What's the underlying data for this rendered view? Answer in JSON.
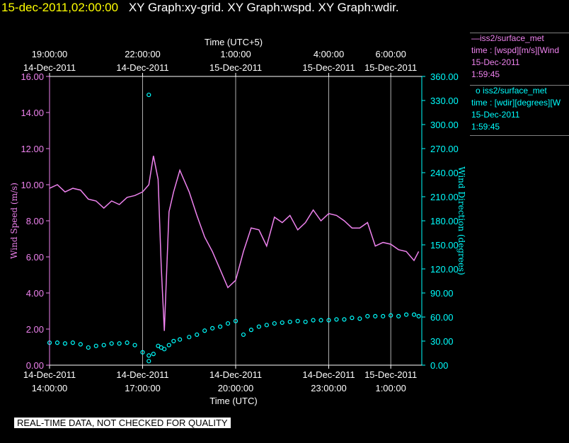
{
  "header": {
    "timestamp": "15-dec-2011,02:00:00",
    "titles": "XY Graph:xy-grid.  XY Graph:wspd.  XY Graph:wdir."
  },
  "legend": {
    "wspd": {
      "name": "iss2/surface_met",
      "line1": "time : [wspd][m/s][Wind",
      "date": "15-Dec-2011",
      "time": "1:59:45",
      "marker": "—"
    },
    "wdir": {
      "name": "iss2/surface_met",
      "line1": "time : [wdir][degrees][W",
      "date": "15-Dec-2011",
      "time": "1:59:45",
      "marker": "o"
    }
  },
  "footer_note": "REAL-TIME DATA, NOT CHECKED FOR QUALITY",
  "colors": {
    "wspd": "#ee82ee",
    "wdir": "#00ffff",
    "axis": "#ffffff",
    "grid": "#b0b0b0",
    "timestamp": "#ffff00"
  },
  "chart_data": {
    "type": "line",
    "x_bottom": {
      "label": "Time (UTC)",
      "ticks": [
        {
          "t": 14.0,
          "line1": "14-Dec-2011",
          "line2": "14:00:00"
        },
        {
          "t": 17.0,
          "line1": "14-Dec-2011",
          "line2": "17:00:00"
        },
        {
          "t": 20.0,
          "line1": "14-Dec-2011",
          "line2": "20:00:00"
        },
        {
          "t": 23.0,
          "line1": "14-Dec-2011",
          "line2": "23:00:00"
        },
        {
          "t": 25.0,
          "line1": "15-Dec-2011",
          "line2": "1:00:00"
        }
      ],
      "range": [
        14.0,
        26.0
      ]
    },
    "x_top": {
      "label": "Time (UTC+5)",
      "ticks": [
        {
          "t": 14.0,
          "line1": "19:00:00",
          "line2": "14-Dec-2011"
        },
        {
          "t": 17.0,
          "line1": "22:00:00",
          "line2": "14-Dec-2011"
        },
        {
          "t": 20.0,
          "line1": "1:00:00",
          "line2": "15-Dec-2011"
        },
        {
          "t": 23.0,
          "line1": "4:00:00",
          "line2": "15-Dec-2011"
        },
        {
          "t": 25.0,
          "line1": "6:00:00",
          "line2": "15-Dec-2011"
        }
      ]
    },
    "y_left": {
      "label": "Wind Speed (m/s)",
      "range": [
        0,
        16
      ],
      "ticks": [
        "0.00",
        "2.00",
        "4.00",
        "6.00",
        "8.00",
        "10.00",
        "12.00",
        "14.00",
        "16.00"
      ]
    },
    "y_right": {
      "label": "Wind Direction (degrees)",
      "range": [
        0,
        360
      ],
      "ticks": [
        "0.00",
        "30.00",
        "60.00",
        "90.00",
        "120.00",
        "150.00",
        "180.00",
        "210.00",
        "240.00",
        "270.00",
        "300.00",
        "330.00",
        "360.00"
      ]
    },
    "grid": true,
    "series": [
      {
        "name": "iss2/surface_met",
        "axis": "left",
        "style": "line",
        "x": [
          14.0,
          14.25,
          14.5,
          14.75,
          15.0,
          15.25,
          15.5,
          15.75,
          16.0,
          16.25,
          16.5,
          16.75,
          17.0,
          17.2,
          17.35,
          17.5,
          17.6,
          17.7,
          17.85,
          18.0,
          18.2,
          18.5,
          18.75,
          19.0,
          19.25,
          19.5,
          19.75,
          20.0,
          20.25,
          20.5,
          20.75,
          21.0,
          21.25,
          21.5,
          21.75,
          22.0,
          22.25,
          22.5,
          22.75,
          23.0,
          23.25,
          23.5,
          23.75,
          24.0,
          24.25,
          24.5,
          24.75,
          25.0,
          25.25,
          25.5,
          25.75,
          25.9
        ],
        "y": [
          9.8,
          10.0,
          9.6,
          9.8,
          9.7,
          9.2,
          9.1,
          8.7,
          9.1,
          8.9,
          9.3,
          9.4,
          9.6,
          10.0,
          11.6,
          10.3,
          5.5,
          1.9,
          8.5,
          9.6,
          10.8,
          9.6,
          8.3,
          7.1,
          6.3,
          5.3,
          4.3,
          4.7,
          6.3,
          7.6,
          7.5,
          6.6,
          8.2,
          7.9,
          8.3,
          7.5,
          7.9,
          8.6,
          8.0,
          8.4,
          8.3,
          8.0,
          7.6,
          7.6,
          7.9,
          6.6,
          6.8,
          6.7,
          6.4,
          6.3,
          5.8,
          6.3
        ]
      },
      {
        "name": "iss2/surface_met",
        "axis": "right",
        "style": "markers",
        "x": [
          14.0,
          14.25,
          14.5,
          14.75,
          15.0,
          15.25,
          15.5,
          15.75,
          16.0,
          16.25,
          16.5,
          16.75,
          17.0,
          17.2,
          17.35,
          17.5,
          17.6,
          17.7,
          17.85,
          18.0,
          18.2,
          18.5,
          18.75,
          19.0,
          19.25,
          19.5,
          19.75,
          20.0,
          20.25,
          20.5,
          20.75,
          21.0,
          21.25,
          21.5,
          21.75,
          22.0,
          22.25,
          22.5,
          22.75,
          23.0,
          23.25,
          23.5,
          23.75,
          24.0,
          24.25,
          24.5,
          24.75,
          25.0,
          25.25,
          25.5,
          25.75,
          25.9
        ],
        "y": [
          28,
          28,
          27,
          28,
          26,
          22,
          24,
          25,
          27,
          27,
          28,
          25,
          16,
          12,
          14,
          24,
          22,
          20,
          25,
          30,
          32,
          35,
          38,
          43,
          46,
          48,
          52,
          55,
          38,
          44,
          48,
          50,
          52,
          53,
          54,
          55,
          54,
          56,
          56,
          56,
          57,
          57,
          59,
          58,
          61,
          61,
          61,
          62,
          61,
          63,
          63,
          61
        ]
      },
      {
        "name": "iss2/surface_met",
        "axis": "right",
        "style": "outlier-markers",
        "x": [
          17.2,
          17.2
        ],
        "y": [
          337,
          5
        ]
      }
    ]
  }
}
